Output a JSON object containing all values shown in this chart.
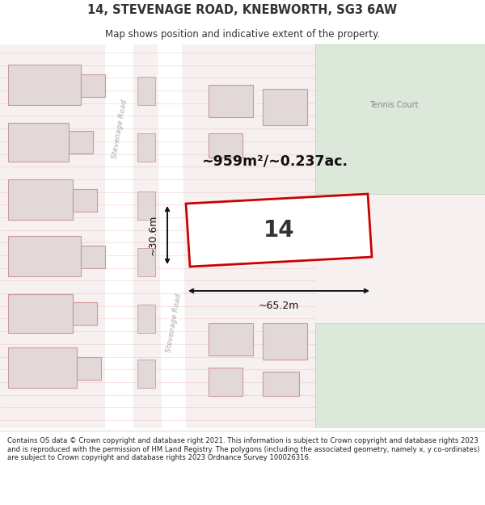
{
  "title": "14, STEVENAGE ROAD, KNEBWORTH, SG3 6AW",
  "subtitle": "Map shows position and indicative extent of the property.",
  "footer": "Contains OS data © Crown copyright and database right 2021. This information is subject to Crown copyright and database rights 2023 and is reproduced with the permission of HM Land Registry. The polygons (including the associated geometry, namely x, y co-ordinates) are subject to Crown copyright and database rights 2023 Ordnance Survey 100026316.",
  "area_label": "~959m²/~0.237ac.",
  "number_label": "14",
  "dim_width": "~65.2m",
  "dim_height": "~30.6m",
  "tennis_court_label": "Tennis Court",
  "stevenage_road_label_upper": "Stevenage Road",
  "stevenage_road_label_lower": "Stevenage Road",
  "bg_color": "#ffffff",
  "map_bg": "#f7f0f0",
  "green_color": "#dce8da",
  "road_fill": "#ffffff",
  "road_area_fill": "#f5eaea",
  "building_fill": "#e2d8d8",
  "building_stroke": "#cc9999",
  "highlight_fill": "#ffffff",
  "highlight_stroke": "#cc0000",
  "dim_color": "#111111",
  "text_color": "#333333",
  "road_line_color": "#e8a0a0",
  "label_color": "#aaaaaa"
}
